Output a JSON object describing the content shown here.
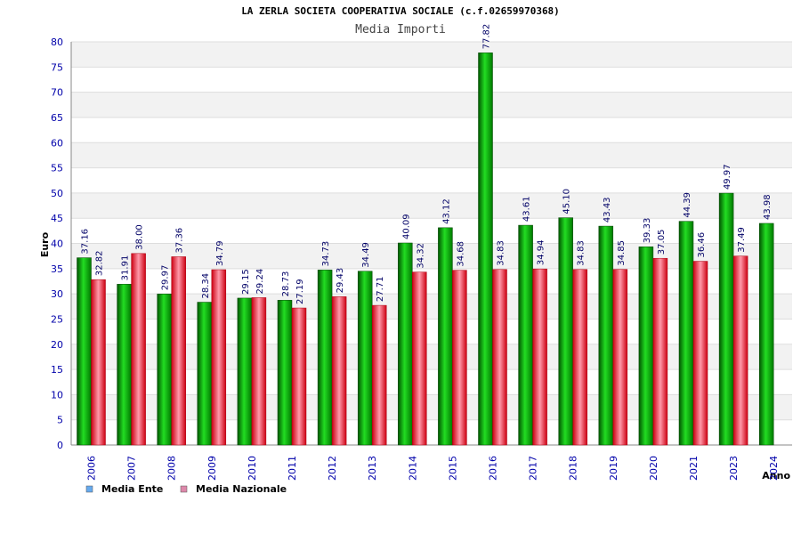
{
  "chart_data": {
    "type": "bar",
    "title": "LA ZERLA SOCIETA COOPERATIVA SOCIALE (c.f.02659970368)",
    "subtitle": "Media Importi",
    "xlabel": "Anno",
    "ylabel": "Euro",
    "ylim": [
      0,
      80
    ],
    "ytick_step": 5,
    "grid": "horizontal bands",
    "legend_position": "bottom-left",
    "categories": [
      "2006",
      "2007",
      "2008",
      "2009",
      "2010",
      "2011",
      "2012",
      "2013",
      "2014",
      "2015",
      "2016",
      "2017",
      "2018",
      "2019",
      "2020",
      "2021",
      "2023",
      "2024"
    ],
    "series": [
      {
        "name": "Media Ente",
        "color": "#00aa00",
        "legend_color": "#66aaee",
        "values": [
          37.16,
          31.91,
          29.97,
          28.34,
          29.15,
          28.73,
          34.73,
          34.49,
          40.09,
          43.12,
          77.82,
          43.61,
          45.1,
          43.43,
          39.33,
          44.39,
          49.97,
          43.98
        ],
        "labels": [
          "37.16",
          "31.91",
          "29.97",
          "28.34",
          "29.15",
          "28.73",
          "34.73",
          "34.49",
          "40.09",
          "43.12",
          "77.82",
          "43.61",
          "45.10",
          "43.43",
          "39.33",
          "44.39",
          "49.97",
          "43.98"
        ]
      },
      {
        "name": "Media Nazionale",
        "color": "#ee2233",
        "legend_color": "#dd88aa",
        "values": [
          32.82,
          38.0,
          37.36,
          34.79,
          29.24,
          27.19,
          29.43,
          27.71,
          34.32,
          34.68,
          34.83,
          34.94,
          34.83,
          34.85,
          37.05,
          36.46,
          37.49,
          null
        ],
        "labels": [
          "32.82",
          "38.00",
          "37.36",
          "34.79",
          "29.24",
          "27.19",
          "29.43",
          "27.71",
          "34.32",
          "34.68",
          "34.83",
          "34.94",
          "34.83",
          "34.85",
          "37.05",
          "36.46",
          "37.49",
          null
        ]
      }
    ]
  }
}
